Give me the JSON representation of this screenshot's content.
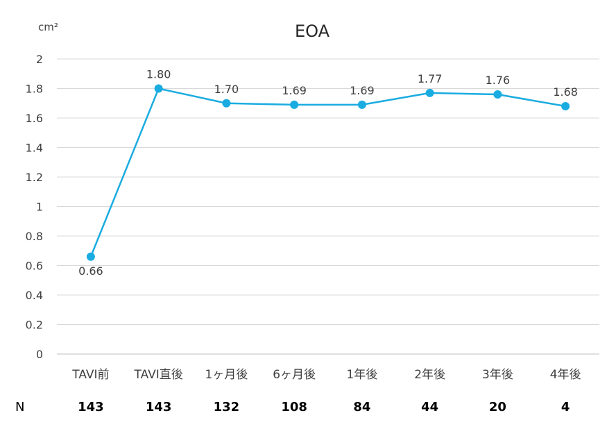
{
  "chart_data": {
    "type": "line",
    "title": "EOA",
    "ylabel": "cm²",
    "categories": [
      "TAVI前",
      "TAVI直後",
      "1ヶ月後",
      "6ヶ月後",
      "1年後",
      "2年後",
      "3年後",
      "4年後"
    ],
    "series": [
      {
        "values": [
          0.66,
          1.8,
          1.7,
          1.69,
          1.69,
          1.77,
          1.76,
          1.68
        ]
      }
    ],
    "data_labels": [
      "0.66",
      "1.80",
      "1.70",
      "1.69",
      "1.69",
      "1.77",
      "1.76",
      "1.68"
    ],
    "ylim": [
      0,
      2
    ],
    "yticks": [
      "0",
      "0.2",
      "0.4",
      "0.6",
      "0.8",
      "1",
      "1.2",
      "1.4",
      "1.6",
      "1.8",
      "2"
    ],
    "grid": true,
    "color": "#1AACE0"
  },
  "n_row": {
    "label": "N",
    "values": [
      "143",
      "143",
      "132",
      "108",
      "84",
      "44",
      "20",
      "4"
    ]
  }
}
